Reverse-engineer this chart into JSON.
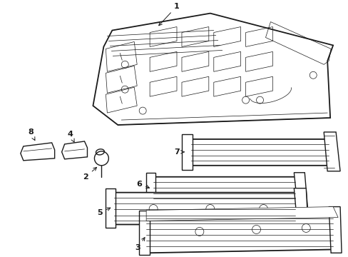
{
  "background_color": "#ffffff",
  "line_color": "#1a1a1a",
  "lw_main": 1.0,
  "lw_thin": 0.5,
  "lw_thick": 1.3,
  "fig_width": 4.89,
  "fig_height": 3.6,
  "dpi": 100
}
